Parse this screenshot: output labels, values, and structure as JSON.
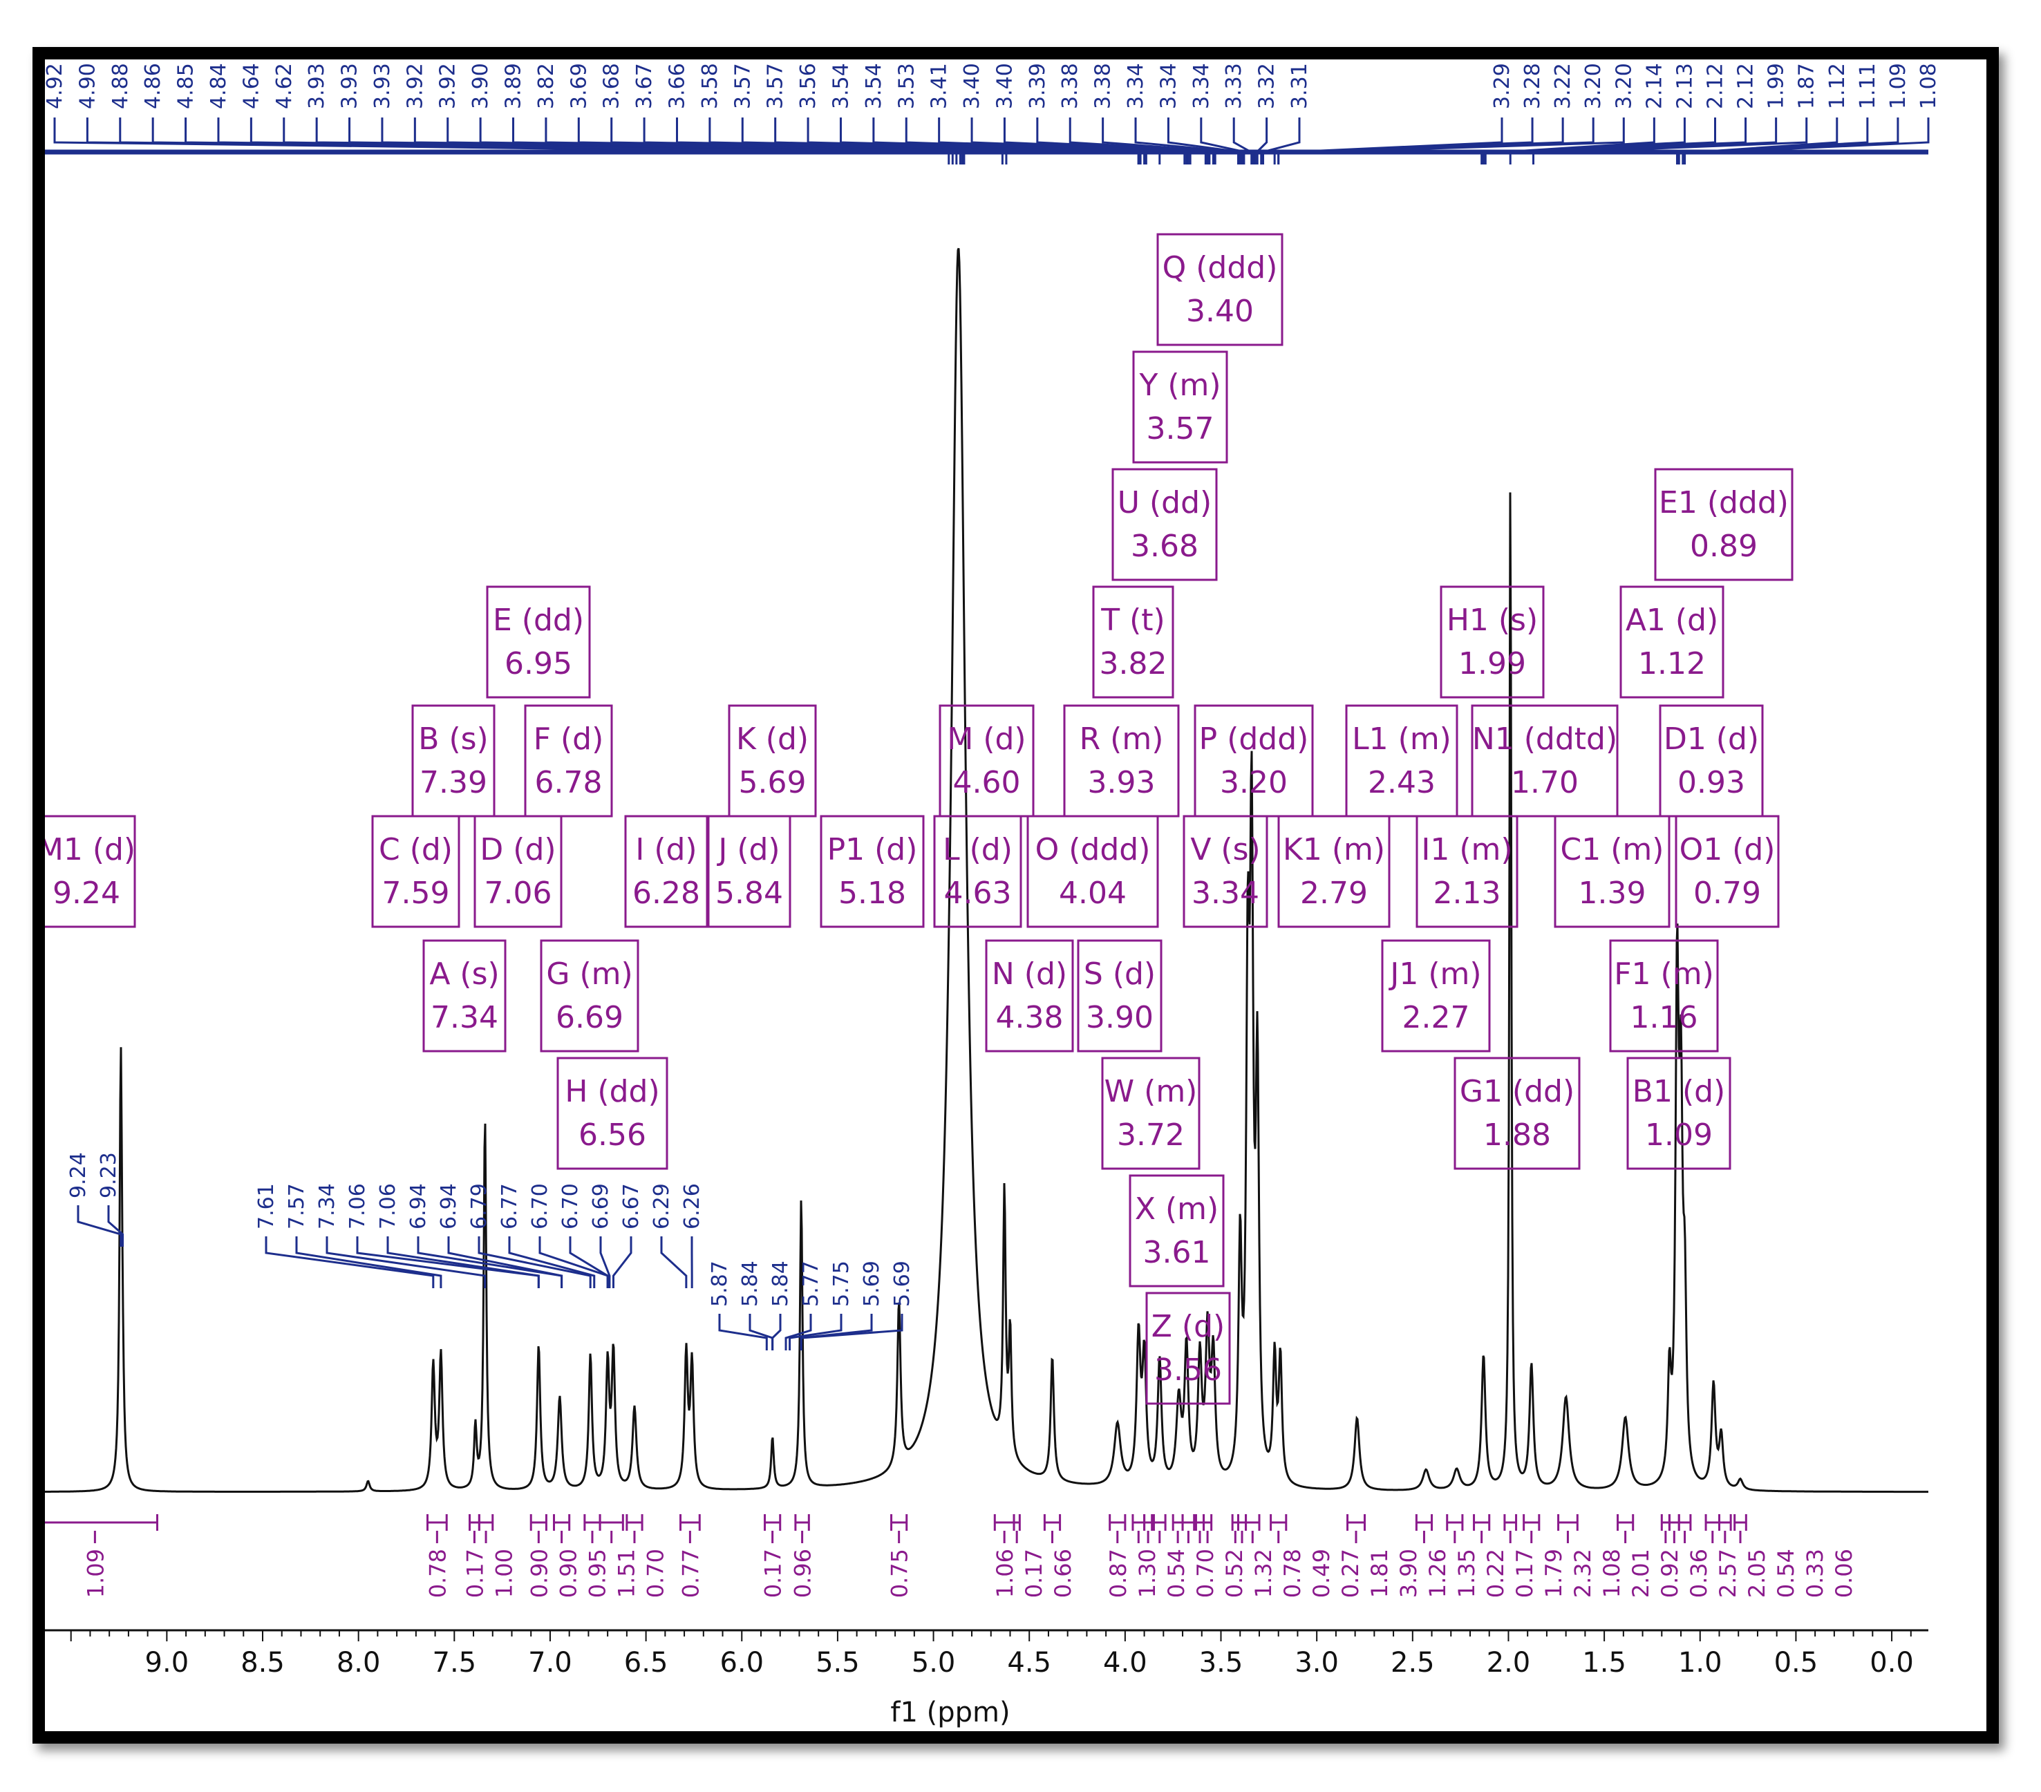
{
  "colors": {
    "peak_label": "#1d2e8c",
    "multiplet": "#8a1a8c",
    "integral": "#8a1a8c",
    "spectrum": "#111111",
    "axis": "#111111"
  },
  "chart_data": {
    "type": "line",
    "title": "",
    "xlabel": "f1 (ppm)",
    "ylabel": "",
    "xlim": [
      9.7,
      -0.5
    ],
    "x_ticks": [
      9.0,
      8.5,
      8.0,
      7.5,
      7.0,
      6.5,
      6.0,
      5.5,
      5.0,
      4.5,
      4.0,
      3.5,
      3.0,
      2.5,
      2.0,
      1.5,
      1.0,
      0.5,
      0.0
    ],
    "x_tick_labels": [
      "9.0",
      "8.5",
      "8.0",
      "7.5",
      "7.0",
      "6.5",
      "6.0",
      "5.5",
      "5.0",
      "4.5",
      "4.0",
      "3.5",
      "3.0",
      "2.5",
      "2.0",
      "1.5",
      "1.0",
      "0.5",
      "0.0"
    ],
    "peak_labels_top": [
      "4.92",
      "4.90",
      "4.88",
      "4.86",
      "4.85",
      "4.84",
      "4.64",
      "4.62",
      "3.93",
      "3.93",
      "3.93",
      "3.92",
      "3.92",
      "3.90",
      "3.89",
      "3.82",
      "3.69",
      "3.68",
      "3.67",
      "3.66",
      "3.58",
      "3.57",
      "3.57",
      "3.56",
      "3.54",
      "3.54",
      "3.53",
      "3.41",
      "3.40",
      "3.40",
      "3.39",
      "3.38",
      "3.38",
      "3.34",
      "3.34",
      "3.34",
      "3.33",
      "3.32",
      "3.31",
      "3.29",
      "3.28",
      "3.22",
      "3.20",
      "3.20",
      "2.14",
      "2.13",
      "2.12",
      "2.12",
      "1.99",
      "1.87",
      "1.12",
      "1.11",
      "1.09",
      "1.08"
    ],
    "peak_labels_group1": [
      "9.24",
      "9.23"
    ],
    "peak_labels_group2": [
      "7.61",
      "7.57",
      "7.34",
      "7.06",
      "7.06",
      "6.94",
      "6.94",
      "6.79",
      "6.77",
      "6.70",
      "6.70",
      "6.69",
      "6.67",
      "6.29",
      "6.26"
    ],
    "peak_labels_group3": [
      "5.87",
      "5.84",
      "5.84",
      "5.77",
      "5.75",
      "5.69",
      "5.69"
    ],
    "multiplets": [
      {
        "label": "M1 (d)",
        "shift": "9.24"
      },
      {
        "label": "C (d)",
        "shift": "7.59"
      },
      {
        "label": "B (s)",
        "shift": "7.39"
      },
      {
        "label": "A (s)",
        "shift": "7.34"
      },
      {
        "label": "D (d)",
        "shift": "7.06"
      },
      {
        "label": "E (dd)",
        "shift": "6.95"
      },
      {
        "label": "F (d)",
        "shift": "6.78"
      },
      {
        "label": "G (m)",
        "shift": "6.69"
      },
      {
        "label": "H (dd)",
        "shift": "6.56"
      },
      {
        "label": "I (d)",
        "shift": "6.28"
      },
      {
        "label": "J (d)",
        "shift": "5.84"
      },
      {
        "label": "K (d)",
        "shift": "5.69"
      },
      {
        "label": "P1 (d)",
        "shift": "5.18"
      },
      {
        "label": "M (d)",
        "shift": "4.60"
      },
      {
        "label": "L (d)",
        "shift": "4.63"
      },
      {
        "label": "N (d)",
        "shift": "4.38"
      },
      {
        "label": "O (ddd)",
        "shift": "4.04"
      },
      {
        "label": "R (m)",
        "shift": "3.93"
      },
      {
        "label": "S (d)",
        "shift": "3.90"
      },
      {
        "label": "T (t)",
        "shift": "3.82"
      },
      {
        "label": "U (dd)",
        "shift": "3.68"
      },
      {
        "label": "W (m)",
        "shift": "3.72"
      },
      {
        "label": "Y (m)",
        "shift": "3.57"
      },
      {
        "label": "X (m)",
        "shift": "3.61"
      },
      {
        "label": "Z (d)",
        "shift": "3.56"
      },
      {
        "label": "Q (ddd)",
        "shift": "3.40"
      },
      {
        "label": "V (s)",
        "shift": "3.34"
      },
      {
        "label": "P (ddd)",
        "shift": "3.20"
      },
      {
        "label": "K1 (m)",
        "shift": "2.79"
      },
      {
        "label": "L1 (m)",
        "shift": "2.43"
      },
      {
        "label": "J1 (m)",
        "shift": "2.27"
      },
      {
        "label": "I1 (m)",
        "shift": "2.13"
      },
      {
        "label": "H1 (s)",
        "shift": "1.99"
      },
      {
        "label": "G1 (dd)",
        "shift": "1.88"
      },
      {
        "label": "N1 (ddtd)",
        "shift": "1.70"
      },
      {
        "label": "C1 (m)",
        "shift": "1.39"
      },
      {
        "label": "F1 (m)",
        "shift": "1.16"
      },
      {
        "label": "A1 (d)",
        "shift": "1.12"
      },
      {
        "label": "B1 (d)",
        "shift": "1.09"
      },
      {
        "label": "E1 (ddd)",
        "shift": "0.89"
      },
      {
        "label": "D1 (d)",
        "shift": "0.93"
      },
      {
        "label": "O1 (d)",
        "shift": "0.79"
      }
    ],
    "integrals": [
      {
        "value": "1.09",
        "from": 9.7,
        "to": 9.05
      },
      {
        "value": "0.78",
        "from": 7.64,
        "to": 7.54
      },
      {
        "value": "0.17",
        "from": 7.42,
        "to": 7.37
      },
      {
        "value": "1.00",
        "from": 7.37,
        "to": 7.3
      },
      {
        "value": "0.90",
        "from": 7.1,
        "to": 7.02
      },
      {
        "value": "0.90",
        "from": 6.98,
        "to": 6.9
      },
      {
        "value": "0.95",
        "from": 6.82,
        "to": 6.74
      },
      {
        "value": "1.51",
        "from": 6.74,
        "to": 6.62
      },
      {
        "value": "0.70",
        "from": 6.6,
        "to": 6.52
      },
      {
        "value": "0.77",
        "from": 6.32,
        "to": 6.22
      },
      {
        "value": "0.17",
        "from": 5.88,
        "to": 5.8
      },
      {
        "value": "0.96",
        "from": 5.72,
        "to": 5.65
      },
      {
        "value": "0.75",
        "from": 5.22,
        "to": 5.14
      },
      {
        "value": "1.06",
        "from": 4.68,
        "to": 4.58
      },
      {
        "value": "0.17",
        "from": 4.58,
        "to": 4.55
      },
      {
        "value": "0.66",
        "from": 4.42,
        "to": 4.34
      },
      {
        "value": "0.87",
        "from": 4.08,
        "to": 4.0
      },
      {
        "value": "1.30",
        "from": 3.96,
        "to": 3.9
      },
      {
        "value": "0.54",
        "from": 3.9,
        "to": 3.86
      },
      {
        "value": "0.70",
        "from": 3.85,
        "to": 3.79
      },
      {
        "value": "0.52",
        "from": 3.75,
        "to": 3.7
      },
      {
        "value": "1.32",
        "from": 3.7,
        "to": 3.64
      },
      {
        "value": "0.78",
        "from": 3.63,
        "to": 3.59
      },
      {
        "value": "0.49",
        "from": 3.59,
        "to": 3.55
      },
      {
        "value": "0.27",
        "from": 3.44,
        "to": 3.41
      },
      {
        "value": "1.81",
        "from": 3.41,
        "to": 3.37
      },
      {
        "value": "3.90",
        "from": 3.37,
        "to": 3.3
      },
      {
        "value": "1.26",
        "from": 3.24,
        "to": 3.16
      },
      {
        "value": "1.35",
        "from": 2.84,
        "to": 2.75
      },
      {
        "value": "0.22",
        "from": 2.48,
        "to": 2.4
      },
      {
        "value": "0.17",
        "from": 2.32,
        "to": 2.24
      },
      {
        "value": "1.79",
        "from": 2.18,
        "to": 2.1
      },
      {
        "value": "2.32",
        "from": 2.02,
        "to": 1.96
      },
      {
        "value": "1.08",
        "from": 1.92,
        "to": 1.84
      },
      {
        "value": "2.01",
        "from": 1.74,
        "to": 1.64
      },
      {
        "value": "0.92",
        "from": 1.43,
        "to": 1.35
      },
      {
        "value": "0.36",
        "from": 1.2,
        "to": 1.16
      },
      {
        "value": "2.57",
        "from": 1.16,
        "to": 1.11
      },
      {
        "value": "2.05",
        "from": 1.11,
        "to": 1.05
      },
      {
        "value": "0.54",
        "from": 0.97,
        "to": 0.9
      },
      {
        "value": "0.33",
        "from": 0.9,
        "to": 0.84
      },
      {
        "value": "0.06",
        "from": 0.82,
        "to": 0.76
      }
    ],
    "peaks": [
      {
        "x": 9.24,
        "h": 0.415,
        "w": 0.008
      },
      {
        "x": 9.23,
        "h": 0.04,
        "w": 0.008
      },
      {
        "x": 7.95,
        "h": 0.01,
        "w": 0.01
      },
      {
        "x": 7.61,
        "h": 0.12,
        "w": 0.01
      },
      {
        "x": 7.57,
        "h": 0.13,
        "w": 0.01
      },
      {
        "x": 7.39,
        "h": 0.06,
        "w": 0.008
      },
      {
        "x": 7.34,
        "h": 0.36,
        "w": 0.008
      },
      {
        "x": 7.06,
        "h": 0.14,
        "w": 0.01
      },
      {
        "x": 6.95,
        "h": 0.09,
        "w": 0.012
      },
      {
        "x": 6.79,
        "h": 0.13,
        "w": 0.01
      },
      {
        "x": 6.7,
        "h": 0.12,
        "w": 0.01
      },
      {
        "x": 6.67,
        "h": 0.13,
        "w": 0.01
      },
      {
        "x": 6.56,
        "h": 0.08,
        "w": 0.012
      },
      {
        "x": 6.29,
        "h": 0.13,
        "w": 0.01
      },
      {
        "x": 6.26,
        "h": 0.12,
        "w": 0.01
      },
      {
        "x": 5.84,
        "h": 0.05,
        "w": 0.008
      },
      {
        "x": 5.69,
        "h": 0.28,
        "w": 0.008
      },
      {
        "x": 5.18,
        "h": 0.16,
        "w": 0.01
      },
      {
        "x": 4.87,
        "h": 1.2,
        "w": 0.045
      },
      {
        "x": 4.63,
        "h": 0.25,
        "w": 0.008
      },
      {
        "x": 4.6,
        "h": 0.12,
        "w": 0.008
      },
      {
        "x": 4.38,
        "h": 0.12,
        "w": 0.01
      },
      {
        "x": 4.04,
        "h": 0.06,
        "w": 0.02
      },
      {
        "x": 3.93,
        "h": 0.14,
        "w": 0.012
      },
      {
        "x": 3.9,
        "h": 0.12,
        "w": 0.012
      },
      {
        "x": 3.82,
        "h": 0.12,
        "w": 0.012
      },
      {
        "x": 3.72,
        "h": 0.08,
        "w": 0.015
      },
      {
        "x": 3.68,
        "h": 0.13,
        "w": 0.012
      },
      {
        "x": 3.61,
        "h": 0.12,
        "w": 0.012
      },
      {
        "x": 3.57,
        "h": 0.14,
        "w": 0.012
      },
      {
        "x": 3.54,
        "h": 0.12,
        "w": 0.012
      },
      {
        "x": 3.4,
        "h": 0.22,
        "w": 0.01
      },
      {
        "x": 3.36,
        "h": 0.45,
        "w": 0.01
      },
      {
        "x": 3.34,
        "h": 0.58,
        "w": 0.01
      },
      {
        "x": 3.31,
        "h": 0.38,
        "w": 0.01
      },
      {
        "x": 3.22,
        "h": 0.12,
        "w": 0.01
      },
      {
        "x": 3.19,
        "h": 0.12,
        "w": 0.01
      },
      {
        "x": 2.79,
        "h": 0.07,
        "w": 0.015
      },
      {
        "x": 2.43,
        "h": 0.02,
        "w": 0.02
      },
      {
        "x": 2.27,
        "h": 0.02,
        "w": 0.02
      },
      {
        "x": 2.13,
        "h": 0.13,
        "w": 0.012
      },
      {
        "x": 1.99,
        "h": 0.98,
        "w": 0.006
      },
      {
        "x": 1.88,
        "h": 0.12,
        "w": 0.012
      },
      {
        "x": 1.7,
        "h": 0.09,
        "w": 0.02
      },
      {
        "x": 1.39,
        "h": 0.07,
        "w": 0.02
      },
      {
        "x": 1.16,
        "h": 0.1,
        "w": 0.01
      },
      {
        "x": 1.12,
        "h": 0.47,
        "w": 0.01
      },
      {
        "x": 1.1,
        "h": 0.33,
        "w": 0.01
      },
      {
        "x": 1.08,
        "h": 0.16,
        "w": 0.01
      },
      {
        "x": 0.93,
        "h": 0.1,
        "w": 0.012
      },
      {
        "x": 0.89,
        "h": 0.05,
        "w": 0.012
      },
      {
        "x": 0.79,
        "h": 0.01,
        "w": 0.015
      }
    ]
  }
}
